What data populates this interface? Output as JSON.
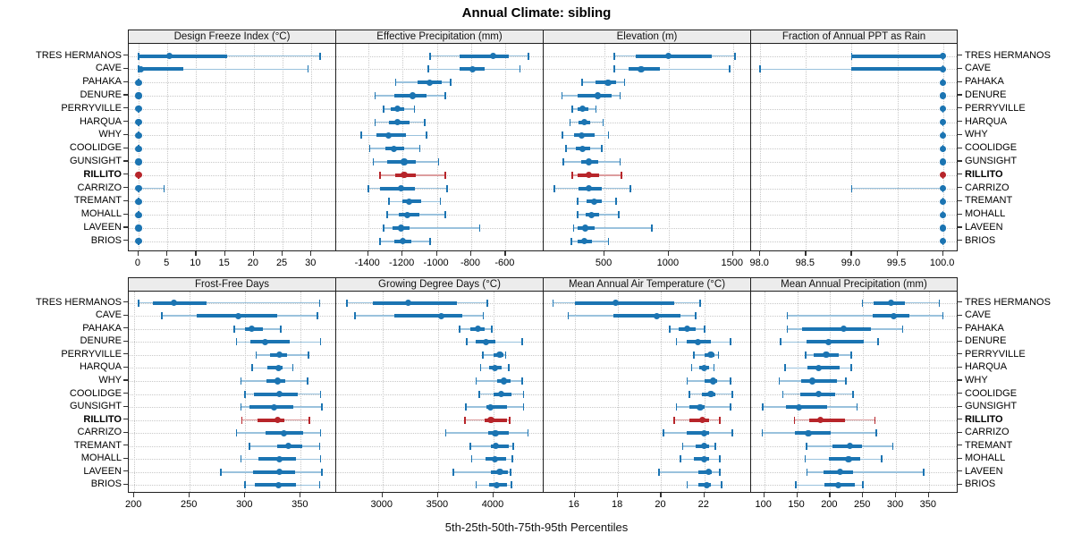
{
  "page": {
    "title": "Annual Climate: sibling",
    "caption": "5th-25th-50th-75th-95th Percentiles"
  },
  "sites": [
    "TRES HERMANOS",
    "CAVE",
    "PAHAKA",
    "DENURE",
    "PERRYVILLE",
    "HARQUA",
    "WHY",
    "COOLIDGE",
    "GUNSIGHT",
    "RILLITO",
    "CARRIZO",
    "TREMANT",
    "MOHALL",
    "LAVEEN",
    "BRIOS"
  ],
  "highlight_site": "RILLITO",
  "colors": {
    "blue": "#1b74b2",
    "blue_light": "#9ac2dd",
    "red": "#b7252a",
    "red_light": "#dc9d9e",
    "grid": "#c8c8c8",
    "border": "#1f1f1f",
    "strip_bg": "#ececec",
    "tick": "#333333"
  },
  "chart_data": {
    "type": "scatter",
    "variant": "trellis-percentile-dotplot",
    "percentiles": [
      5,
      25,
      50,
      75,
      95
    ],
    "rows": 2,
    "cols": 4,
    "legend_position": "none",
    "grid": "dotted",
    "panels": [
      {
        "title": "Design Freeze Index (°C)",
        "xlim": [
          -1.7,
          34.3
        ],
        "ticks": [
          0,
          5,
          10,
          15,
          20,
          25,
          30
        ],
        "tick_labels": [
          "0",
          "5",
          "10",
          "15",
          "20",
          "25",
          "30"
        ],
        "series": [
          [
            0,
            0,
            5.4,
            15.4,
            31.5
          ],
          [
            0,
            0,
            0.4,
            7.8,
            29.4
          ],
          [
            0,
            0,
            0,
            0,
            0
          ],
          [
            0,
            0,
            0,
            0,
            0
          ],
          [
            0,
            0,
            0,
            0,
            0
          ],
          [
            0,
            0,
            0,
            0,
            0
          ],
          [
            0,
            0,
            0,
            0,
            0
          ],
          [
            0,
            0,
            0,
            0,
            0
          ],
          [
            0,
            0,
            0,
            0,
            0
          ],
          [
            0,
            0,
            0,
            0,
            0
          ],
          [
            0,
            0,
            0,
            0,
            4.4
          ],
          [
            0,
            0,
            0,
            0,
            0
          ],
          [
            0,
            0,
            0,
            0,
            0
          ],
          [
            0,
            0,
            0,
            0,
            0
          ],
          [
            0,
            0,
            0,
            0,
            0
          ]
        ]
      },
      {
        "title": "Effective Precipitation (mm)",
        "xlim": [
          -1586,
          -378
        ],
        "ticks": [
          -1400,
          -1200,
          -1000,
          -800,
          -600
        ],
        "tick_labels": [
          "-1400",
          "-1200",
          "-1000",
          "-800",
          "-600"
        ],
        "series": [
          [
            -1040,
            -870,
            -671,
            -580,
            -466
          ],
          [
            -1050,
            -870,
            -790,
            -720,
            -515
          ],
          [
            -1240,
            -1110,
            -1040,
            -970,
            -920
          ],
          [
            -1360,
            -1250,
            -1140,
            -1060,
            -950
          ],
          [
            -1310,
            -1270,
            -1230,
            -1190,
            -1130
          ],
          [
            -1360,
            -1280,
            -1230,
            -1160,
            -1070
          ],
          [
            -1440,
            -1350,
            -1280,
            -1180,
            -1060
          ],
          [
            -1390,
            -1300,
            -1250,
            -1190,
            -1100
          ],
          [
            -1370,
            -1290,
            -1190,
            -1120,
            -990
          ],
          [
            -1330,
            -1240,
            -1190,
            -1120,
            -950
          ],
          [
            -1400,
            -1330,
            -1210,
            -1130,
            -940
          ],
          [
            -1280,
            -1200,
            -1160,
            -1090,
            -980
          ],
          [
            -1290,
            -1220,
            -1170,
            -1100,
            -950
          ],
          [
            -1310,
            -1260,
            -1210,
            -1160,
            -751
          ],
          [
            -1330,
            -1250,
            -1200,
            -1150,
            -1040
          ]
        ]
      },
      {
        "title": "Elevation (m)",
        "xlim": [
          26,
          1641
        ],
        "ticks": [
          500,
          1000,
          1500
        ],
        "tick_labels": [
          "500",
          "1000",
          "1500"
        ],
        "series": [
          [
            576,
            743,
            998,
            1334,
            1515
          ],
          [
            576,
            685,
            785,
            929,
            1474
          ],
          [
            325,
            430,
            527,
            588,
            657
          ],
          [
            170,
            290,
            450,
            555,
            622
          ],
          [
            250,
            292,
            330,
            371,
            432
          ],
          [
            232,
            300,
            342,
            391,
            489
          ],
          [
            172,
            260,
            321,
            420,
            532
          ],
          [
            201,
            280,
            331,
            391,
            478
          ],
          [
            180,
            320,
            380,
            452,
            620
          ],
          [
            250,
            291,
            380,
            461,
            630
          ],
          [
            110,
            300,
            380,
            480,
            700
          ],
          [
            290,
            360,
            420,
            481,
            590
          ],
          [
            290,
            350,
            400,
            460,
            610
          ],
          [
            260,
            291,
            350,
            420,
            870
          ],
          [
            240,
            291,
            341,
            400,
            531
          ]
        ]
      },
      {
        "title": "Fraction of Annual PPT as Rain",
        "xlim": [
          97.9,
          100.17
        ],
        "ticks": [
          98.0,
          98.5,
          99.0,
          99.5,
          100.0
        ],
        "tick_labels": [
          "98.0",
          "98.5",
          "99.0",
          "99.5",
          "100.0"
        ],
        "series": [
          [
            99.0,
            99.0,
            100,
            100,
            100
          ],
          [
            98.0,
            99.0,
            100,
            100,
            100
          ],
          [
            100,
            100,
            100,
            100,
            100
          ],
          [
            100,
            100,
            100,
            100,
            100
          ],
          [
            100,
            100,
            100,
            100,
            100
          ],
          [
            100,
            100,
            100,
            100,
            100
          ],
          [
            100,
            100,
            100,
            100,
            100
          ],
          [
            100,
            100,
            100,
            100,
            100
          ],
          [
            100,
            100,
            100,
            100,
            100
          ],
          [
            100,
            100,
            100,
            100,
            100
          ],
          [
            99.0,
            100,
            100,
            100,
            100
          ],
          [
            100,
            100,
            100,
            100,
            100
          ],
          [
            100,
            100,
            100,
            100,
            100
          ],
          [
            100,
            100,
            100,
            100,
            100
          ],
          [
            100,
            100,
            100,
            100,
            100
          ]
        ]
      },
      {
        "title": "Frost-Free Days",
        "xlim": [
          195,
          382
        ],
        "ticks": [
          200,
          250,
          300,
          350
        ],
        "tick_labels": [
          "200",
          "250",
          "300",
          "350"
        ],
        "series": [
          [
            204,
            217,
            236,
            265,
            367
          ],
          [
            225,
            256,
            294,
            329,
            365
          ],
          [
            290,
            300,
            306,
            316,
            332
          ],
          [
            292,
            305,
            318,
            340,
            368
          ],
          [
            310,
            322,
            331,
            338,
            357
          ],
          [
            306,
            320,
            330,
            334,
            343
          ],
          [
            296,
            319,
            329,
            336,
            356
          ],
          [
            300,
            308,
            331,
            347,
            368
          ],
          [
            296,
            304,
            326,
            343,
            369
          ],
          [
            297,
            311,
            329,
            335,
            358
          ],
          [
            292,
            318,
            335,
            352,
            368
          ],
          [
            304,
            329,
            339,
            351,
            367
          ],
          [
            296,
            312,
            331,
            346,
            368
          ],
          [
            278,
            307,
            331,
            345,
            369
          ],
          [
            300,
            309,
            330,
            346,
            367
          ]
        ]
      },
      {
        "title": "Growing Degree Days (°C)",
        "xlim": [
          2583,
          4451
        ],
        "ticks": [
          3000,
          3500,
          4000
        ],
        "tick_labels": [
          "3000",
          "3500",
          "4000"
        ],
        "series": [
          [
            2680,
            2915,
            3230,
            3670,
            3945
          ],
          [
            2751,
            3107,
            3529,
            3717,
            3909
          ],
          [
            3695,
            3789,
            3856,
            3917,
            3984
          ],
          [
            3757,
            3842,
            3931,
            4016,
            4257
          ],
          [
            3904,
            3997,
            4056,
            4085,
            4110
          ],
          [
            3882,
            3963,
            4011,
            4070,
            4136
          ],
          [
            3842,
            4030,
            4091,
            4150,
            4257
          ],
          [
            3869,
            4003,
            4070,
            4163,
            4270
          ],
          [
            3749,
            3936,
            3971,
            4123,
            4270
          ],
          [
            3743,
            3923,
            3976,
            4123,
            4145
          ],
          [
            3570,
            3949,
            4016,
            4136,
            4310
          ],
          [
            3789,
            3976,
            4021,
            4136,
            4177
          ],
          [
            3802,
            3931,
            4011,
            4110,
            4171
          ],
          [
            3636,
            3976,
            4056,
            4131,
            4155
          ],
          [
            3842,
            3963,
            4030,
            4118,
            4163
          ]
        ]
      },
      {
        "title": "Mean Annual Air Temperature (°C)",
        "xlim": [
          14.56,
          24.16
        ],
        "ticks": [
          16,
          18,
          20,
          22
        ],
        "tick_labels": [
          "16",
          "18",
          "20",
          "22"
        ],
        "series": [
          [
            15.0,
            16.0,
            17.9,
            20.6,
            21.8
          ],
          [
            15.7,
            17.8,
            19.8,
            20.9,
            21.6
          ],
          [
            20.4,
            20.8,
            21.2,
            21.6,
            22.0
          ],
          [
            20.7,
            21.2,
            21.7,
            22.3,
            23.2
          ],
          [
            21.5,
            22.0,
            22.3,
            22.45,
            22.65
          ],
          [
            21.4,
            21.75,
            22.0,
            22.2,
            22.45
          ],
          [
            21.2,
            22.0,
            22.4,
            22.6,
            23.2
          ],
          [
            21.3,
            21.9,
            22.3,
            22.5,
            23.3
          ],
          [
            20.7,
            21.3,
            21.8,
            22.0,
            23.2
          ],
          [
            20.6,
            21.3,
            21.9,
            22.2,
            22.7
          ],
          [
            20.1,
            21.2,
            22.0,
            22.2,
            23.3
          ],
          [
            21.0,
            21.6,
            22.0,
            22.2,
            22.5
          ],
          [
            20.9,
            21.5,
            22.0,
            22.2,
            22.7
          ],
          [
            19.9,
            21.7,
            22.2,
            22.35,
            22.7
          ],
          [
            21.2,
            21.7,
            22.1,
            22.3,
            22.8
          ]
        ]
      },
      {
        "title": "Mean Annual Precipitation (mm)",
        "xlim": [
          80,
          395
        ],
        "ticks": [
          100,
          150,
          200,
          250,
          300,
          350
        ],
        "tick_labels": [
          "100",
          "150",
          "200",
          "250",
          "300",
          "350"
        ],
        "series": [
          [
            249,
            266,
            292,
            313,
            366
          ],
          [
            135,
            264,
            297,
            320,
            371
          ],
          [
            135,
            158,
            221,
            262,
            310
          ],
          [
            125,
            164,
            197,
            251,
            273
          ],
          [
            163,
            175,
            194,
            213,
            232
          ],
          [
            132,
            166,
            183,
            214,
            232
          ],
          [
            123,
            156,
            173,
            210,
            224
          ],
          [
            128,
            155,
            182,
            208,
            235
          ],
          [
            98,
            133,
            153,
            196,
            241
          ],
          [
            146,
            168,
            185,
            222,
            268
          ],
          [
            97,
            146,
            167,
            201,
            270
          ],
          [
            164,
            203,
            230,
            248,
            295
          ],
          [
            162,
            198,
            228,
            246,
            278
          ],
          [
            165,
            190,
            215,
            235,
            342
          ],
          [
            148,
            191,
            212,
            237,
            250
          ]
        ]
      }
    ]
  }
}
